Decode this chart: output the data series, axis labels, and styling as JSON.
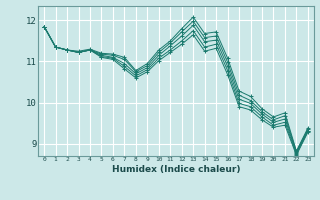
{
  "xlabel": "Humidex (Indice chaleur)",
  "ylabel": "",
  "bg_color": "#cce8e8",
  "grid_color": "#ffffff",
  "line_color": "#1a7a6e",
  "xlim": [
    -0.5,
    23.5
  ],
  "ylim": [
    8.7,
    12.35
  ],
  "xticks": [
    0,
    1,
    2,
    3,
    4,
    5,
    6,
    7,
    8,
    9,
    10,
    11,
    12,
    13,
    14,
    15,
    16,
    17,
    18,
    19,
    20,
    21,
    22,
    23
  ],
  "yticks": [
    9,
    10,
    11,
    12
  ],
  "series": [
    [
      11.85,
      11.35,
      11.28,
      11.25,
      11.3,
      11.2,
      11.18,
      11.1,
      10.78,
      10.95,
      11.28,
      11.5,
      11.8,
      12.08,
      11.68,
      11.72,
      11.08,
      10.28,
      10.15,
      9.85,
      9.65,
      9.75,
      8.82,
      9.38
    ],
    [
      11.85,
      11.35,
      11.28,
      11.22,
      11.28,
      11.18,
      11.15,
      11.05,
      10.75,
      10.9,
      11.22,
      11.45,
      11.72,
      11.98,
      11.58,
      11.62,
      10.98,
      10.18,
      10.05,
      9.78,
      9.58,
      9.68,
      8.8,
      9.35
    ],
    [
      11.85,
      11.35,
      11.28,
      11.22,
      11.28,
      11.15,
      11.1,
      10.95,
      10.7,
      10.85,
      11.15,
      11.38,
      11.62,
      11.88,
      11.48,
      11.52,
      10.88,
      10.08,
      9.98,
      9.72,
      9.52,
      9.6,
      8.78,
      9.32
    ],
    [
      11.85,
      11.35,
      11.28,
      11.22,
      11.28,
      11.12,
      11.08,
      10.88,
      10.65,
      10.8,
      11.08,
      11.28,
      11.5,
      11.75,
      11.35,
      11.42,
      10.78,
      9.98,
      9.9,
      9.65,
      9.45,
      9.52,
      8.75,
      9.3
    ],
    [
      11.85,
      11.35,
      11.28,
      11.22,
      11.28,
      11.1,
      11.05,
      10.82,
      10.6,
      10.75,
      11.02,
      11.22,
      11.42,
      11.65,
      11.25,
      11.32,
      10.68,
      9.9,
      9.82,
      9.58,
      9.4,
      9.45,
      8.72,
      9.28
    ]
  ]
}
